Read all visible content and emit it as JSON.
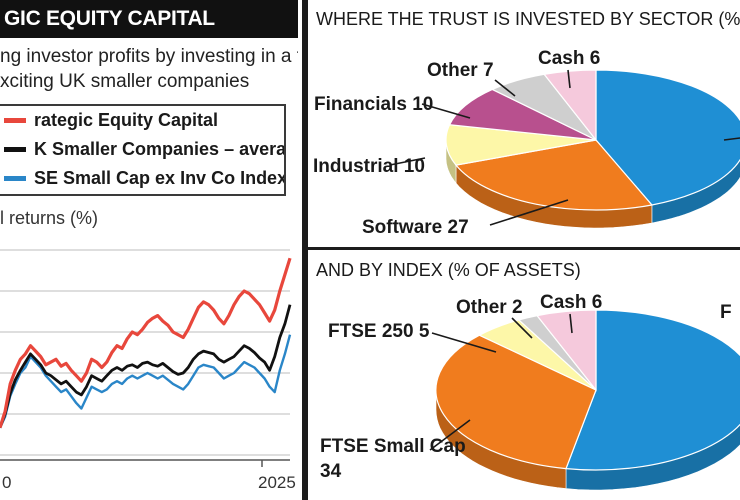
{
  "left_panel": {
    "title": "GIC EQUITY CAPITAL",
    "subtitle_lines": [
      "ng investor profits by investing in a tiny",
      "xciting UK smaller companies"
    ],
    "legend": [
      {
        "label": "rategic Equity Capital",
        "color": "#e8473c"
      },
      {
        "label": "K Smaller Companies – average trust",
        "color": "#111111"
      },
      {
        "label": "SE Small Cap ex Inv Co Index",
        "color": "#2a86c8"
      }
    ],
    "axis_title": "l returns (%)",
    "tick_start": "0",
    "tick_end": "2025"
  },
  "colors": {
    "blue": "#1f8fd4",
    "orange": "#f07c1e",
    "yellow": "#fdf7a8",
    "magenta": "#b8508e",
    "grey": "#cfcfcf",
    "pink": "#f5c9dc",
    "red_line": "#e8473c",
    "black_line": "#111111",
    "blue_line": "#2a86c8"
  },
  "chart_data": [
    {
      "type": "line",
      "title": "",
      "ylabel": "l returns (%)",
      "x_start_label": "0",
      "x_end_label": "2025",
      "series": [
        {
          "name": "rategic Equity Capital",
          "values": [
            -20,
            -8,
            12,
            22,
            30,
            34,
            40,
            36,
            32,
            26,
            28,
            30,
            25,
            27,
            22,
            18,
            14,
            20,
            30,
            28,
            24,
            28,
            35,
            40,
            38,
            45,
            50,
            48,
            52,
            57,
            60,
            62,
            58,
            55,
            50,
            48,
            46,
            52,
            60,
            68,
            72,
            70,
            66,
            60,
            56,
            62,
            70,
            76,
            80,
            78,
            74,
            70,
            64,
            58,
            66,
            80,
            92,
            104
          ]
        },
        {
          "name": "K Smaller Companies – average trust",
          "values": [
            -20,
            -10,
            5,
            15,
            22,
            28,
            34,
            30,
            26,
            20,
            18,
            15,
            12,
            14,
            10,
            6,
            4,
            10,
            18,
            16,
            14,
            18,
            22,
            24,
            22,
            25,
            26,
            24,
            27,
            28,
            26,
            25,
            27,
            24,
            21,
            19,
            20,
            24,
            30,
            34,
            36,
            35,
            34,
            30,
            28,
            30,
            32,
            36,
            40,
            38,
            35,
            31,
            28,
            22,
            32,
            46,
            56,
            70
          ]
        },
        {
          "name": "SE Small Cap ex Inv Co Index",
          "values": [
            -20,
            -12,
            3,
            12,
            20,
            24,
            32,
            28,
            24,
            18,
            14,
            10,
            6,
            8,
            3,
            -2,
            -6,
            2,
            10,
            8,
            6,
            8,
            12,
            14,
            12,
            16,
            18,
            16,
            18,
            20,
            18,
            16,
            18,
            15,
            12,
            10,
            8,
            12,
            18,
            24,
            26,
            25,
            24,
            20,
            16,
            18,
            20,
            24,
            28,
            26,
            24,
            20,
            16,
            10,
            6,
            22,
            34,
            48
          ]
        }
      ]
    },
    {
      "type": "pie",
      "title": "WHERE THE TRUST IS INVESTED BY SECTOR (% OF ASSETS)",
      "slices": [
        {
          "label": "",
          "value": 47,
          "color": "#1f8fd4"
        },
        {
          "label": "Software",
          "value": 27,
          "color": "#f07c1e"
        },
        {
          "label": "Industrial",
          "value": 10,
          "color": "#fdf7a8"
        },
        {
          "label": "Financials",
          "value": 10,
          "color": "#b8508e"
        },
        {
          "label": "Other",
          "value": 7,
          "color": "#cfcfcf"
        },
        {
          "label": "Cash",
          "value": 6,
          "color": "#f5c9dc"
        }
      ]
    },
    {
      "type": "pie",
      "title": "AND BY INDEX (% OF ASSETS)",
      "slices": [
        {
          "label": "F",
          "value": 53,
          "color": "#1f8fd4"
        },
        {
          "label": "FTSE Small Cap",
          "value": 34,
          "color": "#f07c1e"
        },
        {
          "label": "FTSE 250",
          "value": 5,
          "color": "#fdf7a8"
        },
        {
          "label": "Other",
          "value": 2,
          "color": "#cfcfcf"
        },
        {
          "label": "Cash",
          "value": 6,
          "color": "#f5c9dc"
        }
      ]
    }
  ]
}
